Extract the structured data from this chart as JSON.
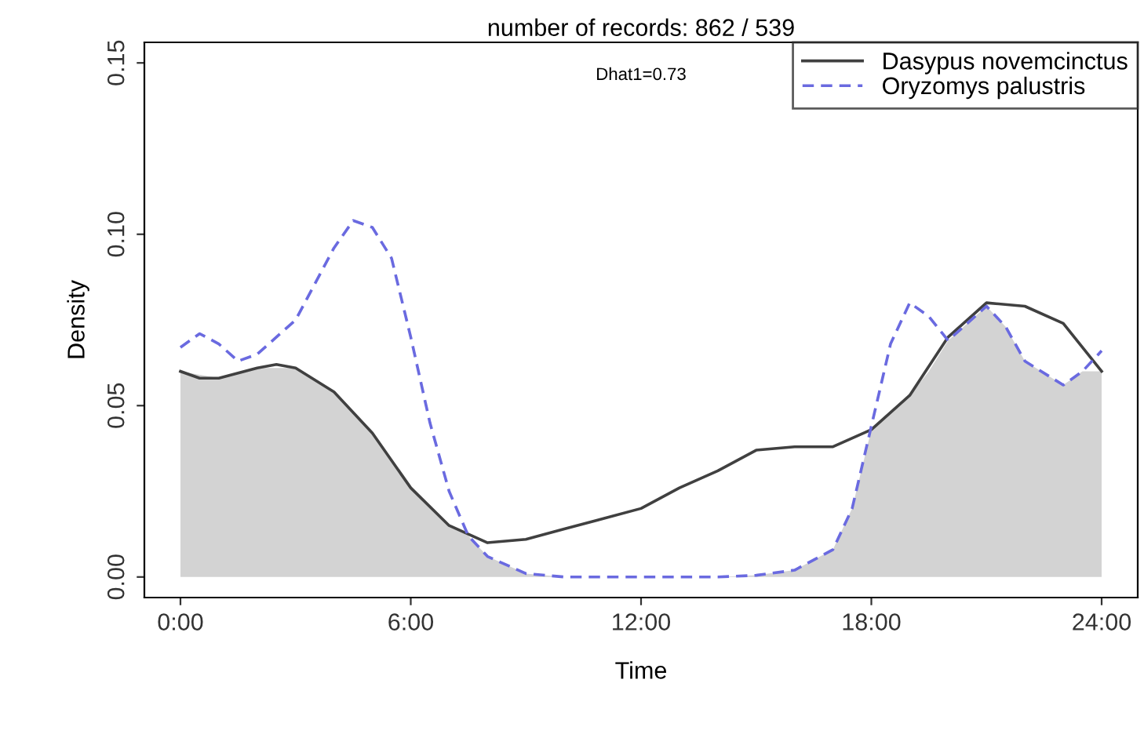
{
  "chart_data": {
    "type": "line",
    "title": "number of records: 862 / 539",
    "xlabel": "Time",
    "ylabel": "Density",
    "annotations": [
      "Dhat1=0.73"
    ],
    "series": [
      {
        "type": "area",
        "color": "#d3d3d3",
        "x": [
          0,
          1,
          2,
          3,
          4,
          5,
          6,
          6.5,
          7,
          7.5,
          8,
          9,
          10,
          12,
          14,
          15,
          16,
          17,
          17.5,
          18,
          18.5,
          19,
          19.5,
          20,
          21,
          21.5,
          22,
          23,
          23.5,
          24
        ],
        "values": [
          0.06,
          0.058,
          0.061,
          0.061,
          0.054,
          0.042,
          0.026,
          0.02,
          0.015,
          0.012,
          0.006,
          0.001,
          0,
          0,
          0,
          0.0005,
          0.002,
          0.008,
          0.02,
          0.043,
          0.048,
          0.053,
          0.06,
          0.069,
          0.079,
          0.073,
          0.063,
          0.056,
          0.06,
          0.06
        ]
      },
      {
        "name": "Dasypus novemcinctus",
        "color": "#404040",
        "line_style": "solid",
        "x": [
          0,
          0.5,
          1,
          2,
          2.5,
          3,
          4,
          5,
          6,
          7,
          8,
          9,
          10,
          11,
          12,
          13,
          14,
          15,
          16,
          17,
          18,
          19,
          20,
          21,
          22,
          23,
          24
        ],
        "values": [
          0.06,
          0.058,
          0.058,
          0.061,
          0.062,
          0.061,
          0.054,
          0.042,
          0.026,
          0.015,
          0.01,
          0.011,
          0.014,
          0.017,
          0.02,
          0.026,
          0.031,
          0.037,
          0.038,
          0.038,
          0.043,
          0.053,
          0.07,
          0.08,
          0.079,
          0.074,
          0.06
        ]
      },
      {
        "name": "Oryzomys palustris",
        "color": "#6a6ae0",
        "line_style": "dashed",
        "x": [
          0,
          0.5,
          1,
          1.5,
          2,
          3,
          4,
          4.5,
          5,
          5.5,
          6,
          6.5,
          7,
          7.5,
          8,
          9,
          10,
          12,
          14,
          15,
          16,
          17,
          17.5,
          18,
          18.5,
          19,
          19.5,
          20,
          21,
          21.5,
          22,
          23,
          23.5,
          24
        ],
        "values": [
          0.067,
          0.071,
          0.068,
          0.063,
          0.065,
          0.075,
          0.096,
          0.104,
          0.102,
          0.093,
          0.07,
          0.045,
          0.025,
          0.012,
          0.006,
          0.001,
          0,
          0,
          0,
          0.0005,
          0.002,
          0.008,
          0.02,
          0.044,
          0.068,
          0.08,
          0.076,
          0.069,
          0.079,
          0.073,
          0.063,
          0.056,
          0.06,
          0.066
        ]
      }
    ],
    "xlim": [
      -0.94,
      24.94
    ],
    "ylim": [
      -0.006,
      0.156
    ],
    "xticks": [
      {
        "value": 0,
        "label": "0:00"
      },
      {
        "value": 6,
        "label": "6:00"
      },
      {
        "value": 12,
        "label": "12:00"
      },
      {
        "value": 18,
        "label": "18:00"
      },
      {
        "value": 24,
        "label": "24:00"
      }
    ],
    "yticks": [
      {
        "value": 0,
        "label": "0.00"
      },
      {
        "value": 0.05,
        "label": "0.05"
      },
      {
        "value": 0.1,
        "label": "0.10"
      },
      {
        "value": 0.15,
        "label": "0.15"
      }
    ],
    "grid": false,
    "legend": "top right",
    "marker": "none"
  }
}
